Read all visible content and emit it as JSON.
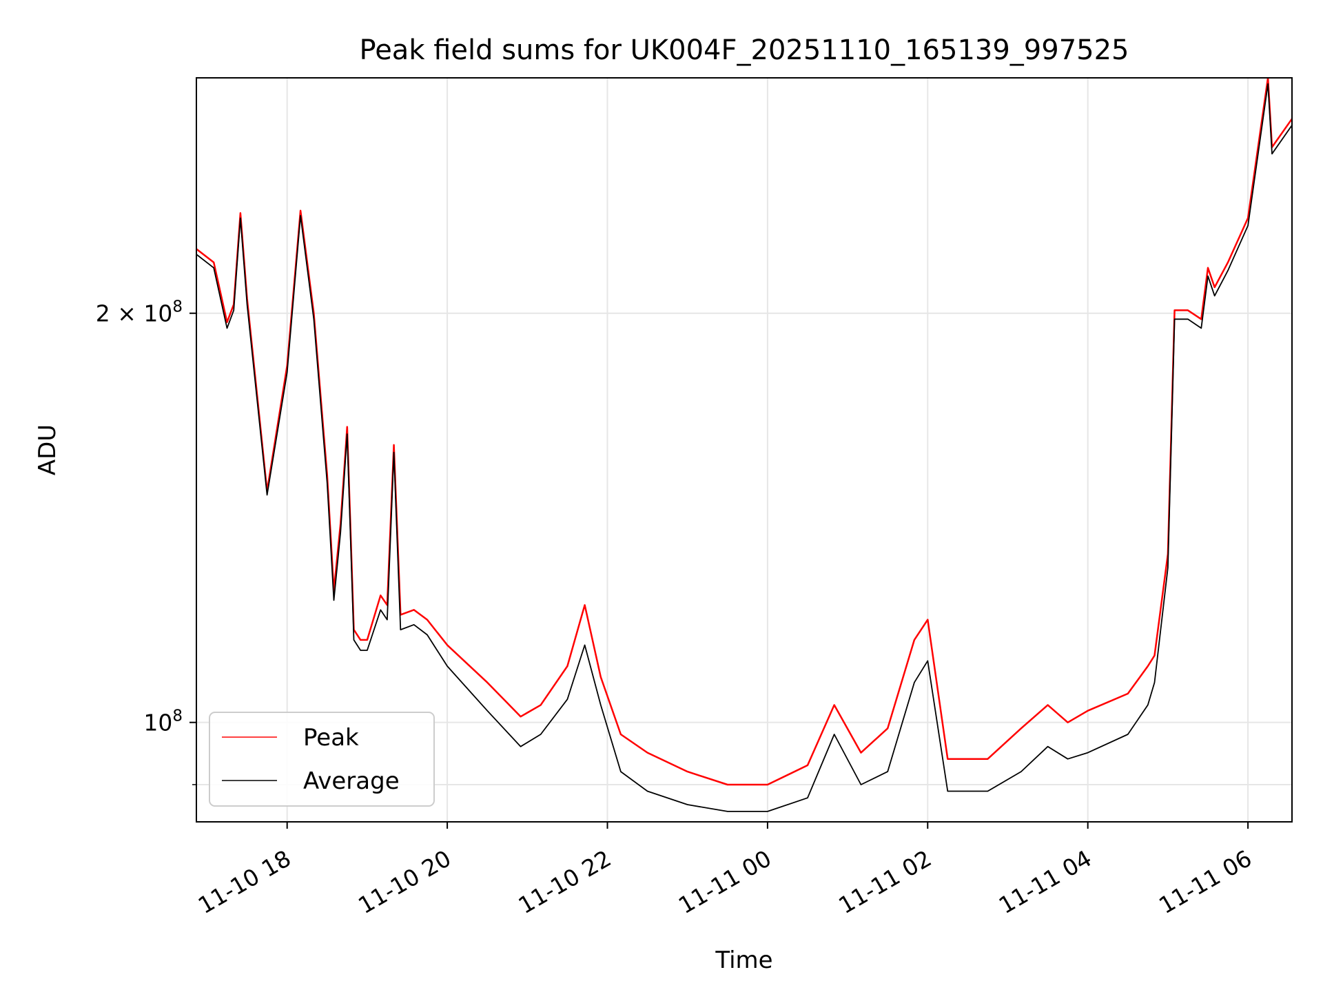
{
  "chart_data": {
    "type": "line",
    "title": "Peak field sums for UK004F_20251110_165139_997525",
    "xlabel": "Time",
    "ylabel": "ADU",
    "x_range": [
      "2025-11-10T16:52",
      "2025-11-11T06:33"
    ],
    "ylim": [
      84500000,
      298000000
    ],
    "y_scale": "log",
    "grid": true,
    "legend": {
      "position": "lower-left",
      "entries": [
        "Peak",
        "Average"
      ]
    },
    "x_ticks": [
      {
        "value": "2025-11-10T18:00",
        "label": "11-10 18"
      },
      {
        "value": "2025-11-10T20:00",
        "label": "11-10 20"
      },
      {
        "value": "2025-11-10T22:00",
        "label": "11-10 22"
      },
      {
        "value": "2025-11-11T00:00",
        "label": "11-11 00"
      },
      {
        "value": "2025-11-11T02:00",
        "label": "11-11 02"
      },
      {
        "value": "2025-11-11T04:00",
        "label": "11-11 04"
      },
      {
        "value": "2025-11-11T06:00",
        "label": "11-11 06"
      }
    ],
    "y_ticks": [
      {
        "value": 100000000,
        "base": "10",
        "exp": "8",
        "mult": ""
      },
      {
        "value": 200000000,
        "base": "10",
        "exp": "8",
        "mult": "2 × "
      }
    ],
    "y_minor_ticks": [
      90000000
    ],
    "series": [
      {
        "name": "Peak",
        "color": "#ff0000",
        "x": [
          "2025-11-10T16:52",
          "2025-11-10T17:05",
          "2025-11-10T17:15",
          "2025-11-10T17:20",
          "2025-11-10T17:25",
          "2025-11-10T17:30",
          "2025-11-10T17:45",
          "2025-11-10T18:00",
          "2025-11-10T18:10",
          "2025-11-10T18:20",
          "2025-11-10T18:30",
          "2025-11-10T18:35",
          "2025-11-10T18:40",
          "2025-11-10T18:45",
          "2025-11-10T18:50",
          "2025-11-10T18:55",
          "2025-11-10T19:00",
          "2025-11-10T19:10",
          "2025-11-10T19:15",
          "2025-11-10T19:20",
          "2025-11-10T19:25",
          "2025-11-10T19:35",
          "2025-11-10T19:45",
          "2025-11-10T20:00",
          "2025-11-10T20:30",
          "2025-11-10T20:55",
          "2025-11-10T21:10",
          "2025-11-10T21:30",
          "2025-11-10T21:43",
          "2025-11-10T21:55",
          "2025-11-10T22:10",
          "2025-11-10T22:30",
          "2025-11-10T23:00",
          "2025-11-10T23:30",
          "2025-11-11T00:00",
          "2025-11-11T00:30",
          "2025-11-11T00:50",
          "2025-11-11T01:10",
          "2025-11-11T01:30",
          "2025-11-11T01:50",
          "2025-11-11T02:00",
          "2025-11-11T02:15",
          "2025-11-11T02:45",
          "2025-11-11T03:10",
          "2025-11-11T03:30",
          "2025-11-11T03:45",
          "2025-11-11T04:00",
          "2025-11-11T04:30",
          "2025-11-11T04:45",
          "2025-11-11T04:50",
          "2025-11-11T05:00",
          "2025-11-11T05:05",
          "2025-11-11T05:15",
          "2025-11-11T05:25",
          "2025-11-11T05:30",
          "2025-11-11T05:35",
          "2025-11-11T05:45",
          "2025-11-11T06:00",
          "2025-11-11T06:15",
          "2025-11-11T06:18",
          "2025-11-11T06:33"
        ],
        "values": [
          223000000,
          218000000,
          197000000,
          203000000,
          237000000,
          205000000,
          148000000,
          183000000,
          238000000,
          200000000,
          152000000,
          125000000,
          140000000,
          165000000,
          117000000,
          115000000,
          115000000,
          124000000,
          122000000,
          160000000,
          120000000,
          121000000,
          119000000,
          114000000,
          107000000,
          101000000,
          103000000,
          110000000,
          122000000,
          108000000,
          98000000,
          95000000,
          92000000,
          90000000,
          90000000,
          93000000,
          103000000,
          95000000,
          99000000,
          115000000,
          119000000,
          94000000,
          94000000,
          99000000,
          103000000,
          100000000,
          102000000,
          105000000,
          110000000,
          112000000,
          133000000,
          201000000,
          201000000,
          198000000,
          216000000,
          209000000,
          218000000,
          235000000,
          298000000,
          265000000,
          278000000
        ]
      },
      {
        "name": "Average",
        "color": "#000000",
        "x": [
          "2025-11-10T16:52",
          "2025-11-10T17:05",
          "2025-11-10T17:15",
          "2025-11-10T17:20",
          "2025-11-10T17:25",
          "2025-11-10T17:30",
          "2025-11-10T17:45",
          "2025-11-10T18:00",
          "2025-11-10T18:10",
          "2025-11-10T18:20",
          "2025-11-10T18:30",
          "2025-11-10T18:35",
          "2025-11-10T18:40",
          "2025-11-10T18:45",
          "2025-11-10T18:50",
          "2025-11-10T18:55",
          "2025-11-10T19:00",
          "2025-11-10T19:10",
          "2025-11-10T19:15",
          "2025-11-10T19:20",
          "2025-11-10T19:25",
          "2025-11-10T19:35",
          "2025-11-10T19:45",
          "2025-11-10T20:00",
          "2025-11-10T20:30",
          "2025-11-10T20:55",
          "2025-11-10T21:10",
          "2025-11-10T21:30",
          "2025-11-10T21:43",
          "2025-11-10T21:55",
          "2025-11-10T22:10",
          "2025-11-10T22:30",
          "2025-11-10T23:00",
          "2025-11-10T23:30",
          "2025-11-11T00:00",
          "2025-11-11T00:30",
          "2025-11-11T00:50",
          "2025-11-11T01:10",
          "2025-11-11T01:30",
          "2025-11-11T01:50",
          "2025-11-11T02:00",
          "2025-11-11T02:15",
          "2025-11-11T02:45",
          "2025-11-11T03:10",
          "2025-11-11T03:30",
          "2025-11-11T03:45",
          "2025-11-11T04:00",
          "2025-11-11T04:30",
          "2025-11-11T04:45",
          "2025-11-11T04:50",
          "2025-11-11T05:00",
          "2025-11-11T05:05",
          "2025-11-11T05:15",
          "2025-11-11T05:25",
          "2025-11-11T05:30",
          "2025-11-11T05:35",
          "2025-11-11T05:45",
          "2025-11-11T06:00",
          "2025-11-11T06:15",
          "2025-11-11T06:18",
          "2025-11-11T06:33"
        ],
        "values": [
          221000000,
          216000000,
          195000000,
          201000000,
          235000000,
          203000000,
          147000000,
          181000000,
          236000000,
          198000000,
          150000000,
          123000000,
          138000000,
          163000000,
          115000000,
          113000000,
          113000000,
          121000000,
          119000000,
          158000000,
          117000000,
          118000000,
          116000000,
          110000000,
          102000000,
          96000000,
          98000000,
          104000000,
          114000000,
          103000000,
          92000000,
          89000000,
          87000000,
          86000000,
          86000000,
          88000000,
          98000000,
          90000000,
          92000000,
          107000000,
          111000000,
          89000000,
          89000000,
          92000000,
          96000000,
          94000000,
          95000000,
          98000000,
          103000000,
          107000000,
          130000000,
          198000000,
          198000000,
          195000000,
          213000000,
          206000000,
          215000000,
          232000000,
          295000000,
          262000000,
          275000000
        ]
      }
    ]
  }
}
